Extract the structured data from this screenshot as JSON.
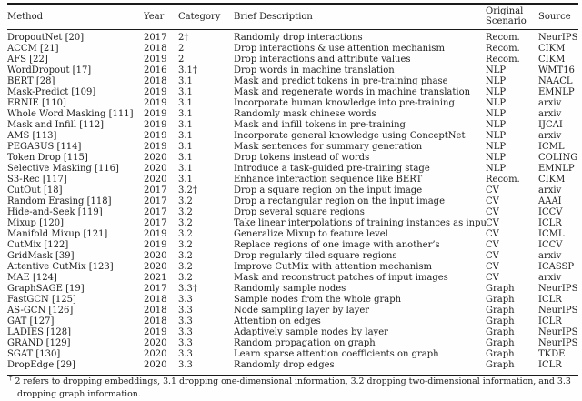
{
  "page": {
    "background": "#fefefe",
    "text_color": "#1c1c1c",
    "rule_color": "#1a1a1a"
  },
  "table": {
    "headers": [
      "Method",
      "Year",
      "Category",
      "Brief Description",
      "Original Scenario",
      "Source"
    ],
    "rows": [
      {
        "method": "DropoutNet [20]",
        "year": "2017",
        "category": "2†",
        "description": "Randomly drop interactions",
        "scenario": "Recom.",
        "source": "NeurIPS"
      },
      {
        "method": "ACCM [21]",
        "year": "2018",
        "category": "2",
        "description": "Drop interactions & use attention mechanism",
        "scenario": "Recom.",
        "source": "CIKM"
      },
      {
        "method": "AFS [22]",
        "year": "2019",
        "category": "2",
        "description": "Drop interactions and attribute values",
        "scenario": "Recom.",
        "source": "CIKM"
      },
      {
        "method": "WordDropout [17]",
        "year": "2016",
        "category": "3.1†",
        "description": "Drop words in machine translation",
        "scenario": "NLP",
        "source": "WMT16"
      },
      {
        "method": "BERT [28]",
        "year": "2018",
        "category": "3.1",
        "description": "Mask and predict tokens in pre-training phase",
        "scenario": "NLP",
        "source": "NAACL"
      },
      {
        "method": "Mask-Predict [109]",
        "year": "2019",
        "category": "3.1",
        "description": "Mask and regenerate words in machine translation",
        "scenario": "NLP",
        "source": "EMNLP"
      },
      {
        "method": "ERNIE [110]",
        "year": "2019",
        "category": "3.1",
        "description": "Incorporate human knowledge into pre-training",
        "scenario": "NLP",
        "source": "arxiv"
      },
      {
        "method": "Whole Word Masking [111]",
        "year": "2019",
        "category": "3.1",
        "description": "Randomly mask chinese words",
        "scenario": "NLP",
        "source": "arxiv"
      },
      {
        "method": "Mask and Infill [112]",
        "year": "2019",
        "category": "3.1",
        "description": "Mask and infill tokens in pre-training",
        "scenario": "NLP",
        "source": "IJCAI"
      },
      {
        "method": "AMS [113]",
        "year": "2019",
        "category": "3.1",
        "description": "Incorporate general knowledge using ConceptNet",
        "scenario": "NLP",
        "source": "arxiv"
      },
      {
        "method": "PEGASUS [114]",
        "year": "2019",
        "category": "3.1",
        "description": "Mask sentences for summary generation",
        "scenario": "NLP",
        "source": "ICML"
      },
      {
        "method": "Token Drop [115]",
        "year": "2020",
        "category": "3.1",
        "description": "Drop tokens instead of words",
        "scenario": "NLP",
        "source": "COLING"
      },
      {
        "method": "Selective Masking [116]",
        "year": "2020",
        "category": "3.1",
        "description": "Introduce a task-guided pre-training stage",
        "scenario": "NLP",
        "source": "EMNLP"
      },
      {
        "method": "S3-Rec [117]",
        "year": "2020",
        "category": "3.1",
        "description": "Enhance interaction sequence like BERT",
        "scenario": "Recom.",
        "source": "CIKM"
      },
      {
        "method": "CutOut [18]",
        "year": "2017",
        "category": "3.2†",
        "description": "Drop a square region on the input image",
        "scenario": "CV",
        "source": "arxiv"
      },
      {
        "method": "Random Erasing [118]",
        "year": "2017",
        "category": "3.2",
        "description": "Drop a rectangular region on the input image",
        "scenario": "CV",
        "source": "AAAI"
      },
      {
        "method": "Hide-and-Seek [119]",
        "year": "2017",
        "category": "3.2",
        "description": "Drop several square regions",
        "scenario": "CV",
        "source": "ICCV"
      },
      {
        "method": "Mixup [120]",
        "year": "2017",
        "category": "3.2",
        "description": "Take linear interpolations of training instances as input",
        "scenario": "CV",
        "source": "ICLR"
      },
      {
        "method": "Manifold Mixup [121]",
        "year": "2019",
        "category": "3.2",
        "description": "Generalize Mixup to feature level",
        "scenario": "CV",
        "source": "ICML"
      },
      {
        "method": "CutMix [122]",
        "year": "2019",
        "category": "3.2",
        "description": "Replace regions of one image with another’s",
        "scenario": "CV",
        "source": "ICCV"
      },
      {
        "method": "GridMask [39]",
        "year": "2020",
        "category": "3.2",
        "description": "Drop regularly tiled square regions",
        "scenario": "CV",
        "source": "arxiv"
      },
      {
        "method": "Attentive CutMix [123]",
        "year": "2020",
        "category": "3.2",
        "description": "Improve CutMix with attention mechanism",
        "scenario": "CV",
        "source": "ICASSP"
      },
      {
        "method": "MAE [124]",
        "year": "2021",
        "category": "3.2",
        "description": "Mask and reconstruct patches of input images",
        "scenario": "CV",
        "source": "arxiv"
      },
      {
        "method": "GraphSAGE [19]",
        "year": "2017",
        "category": "3.3†",
        "description": "Randomly sample nodes",
        "scenario": "Graph",
        "source": "NeurIPS"
      },
      {
        "method": "FastGCN [125]",
        "year": "2018",
        "category": "3.3",
        "description": "Sample nodes from the whole graph",
        "scenario": "Graph",
        "source": "ICLR"
      },
      {
        "method": "AS-GCN [126]",
        "year": "2018",
        "category": "3.3",
        "description": "Node sampling layer by layer",
        "scenario": "Graph",
        "source": "NeurIPS"
      },
      {
        "method": "GAT [127]",
        "year": "2018",
        "category": "3.3",
        "description": "Attention on edges",
        "scenario": "Graph",
        "source": "ICLR"
      },
      {
        "method": "LADIES [128]",
        "year": "2019",
        "category": "3.3",
        "description": "Adaptively sample nodes by layer",
        "scenario": "Graph",
        "source": "NeurIPS"
      },
      {
        "method": "GRAND [129]",
        "year": "2020",
        "category": "3.3",
        "description": "Random propagation on graph",
        "scenario": "Graph",
        "source": "NeurIPS"
      },
      {
        "method": "SGAT [130]",
        "year": "2020",
        "category": "3.3",
        "description": "Learn sparse attention coefficients on graph",
        "scenario": "Graph",
        "source": "TKDE"
      },
      {
        "method": "DropEdge [29]",
        "year": "2020",
        "category": "3.3",
        "description": "Randomly drop edges",
        "scenario": "Graph",
        "source": "ICLR"
      }
    ]
  },
  "footnote": {
    "marker": "†",
    "text": "2 refers to dropping embeddings, 3.1 dropping one-dimensional information, 3.2 dropping two-dimensional information, and 3.3 dropping graph information."
  }
}
